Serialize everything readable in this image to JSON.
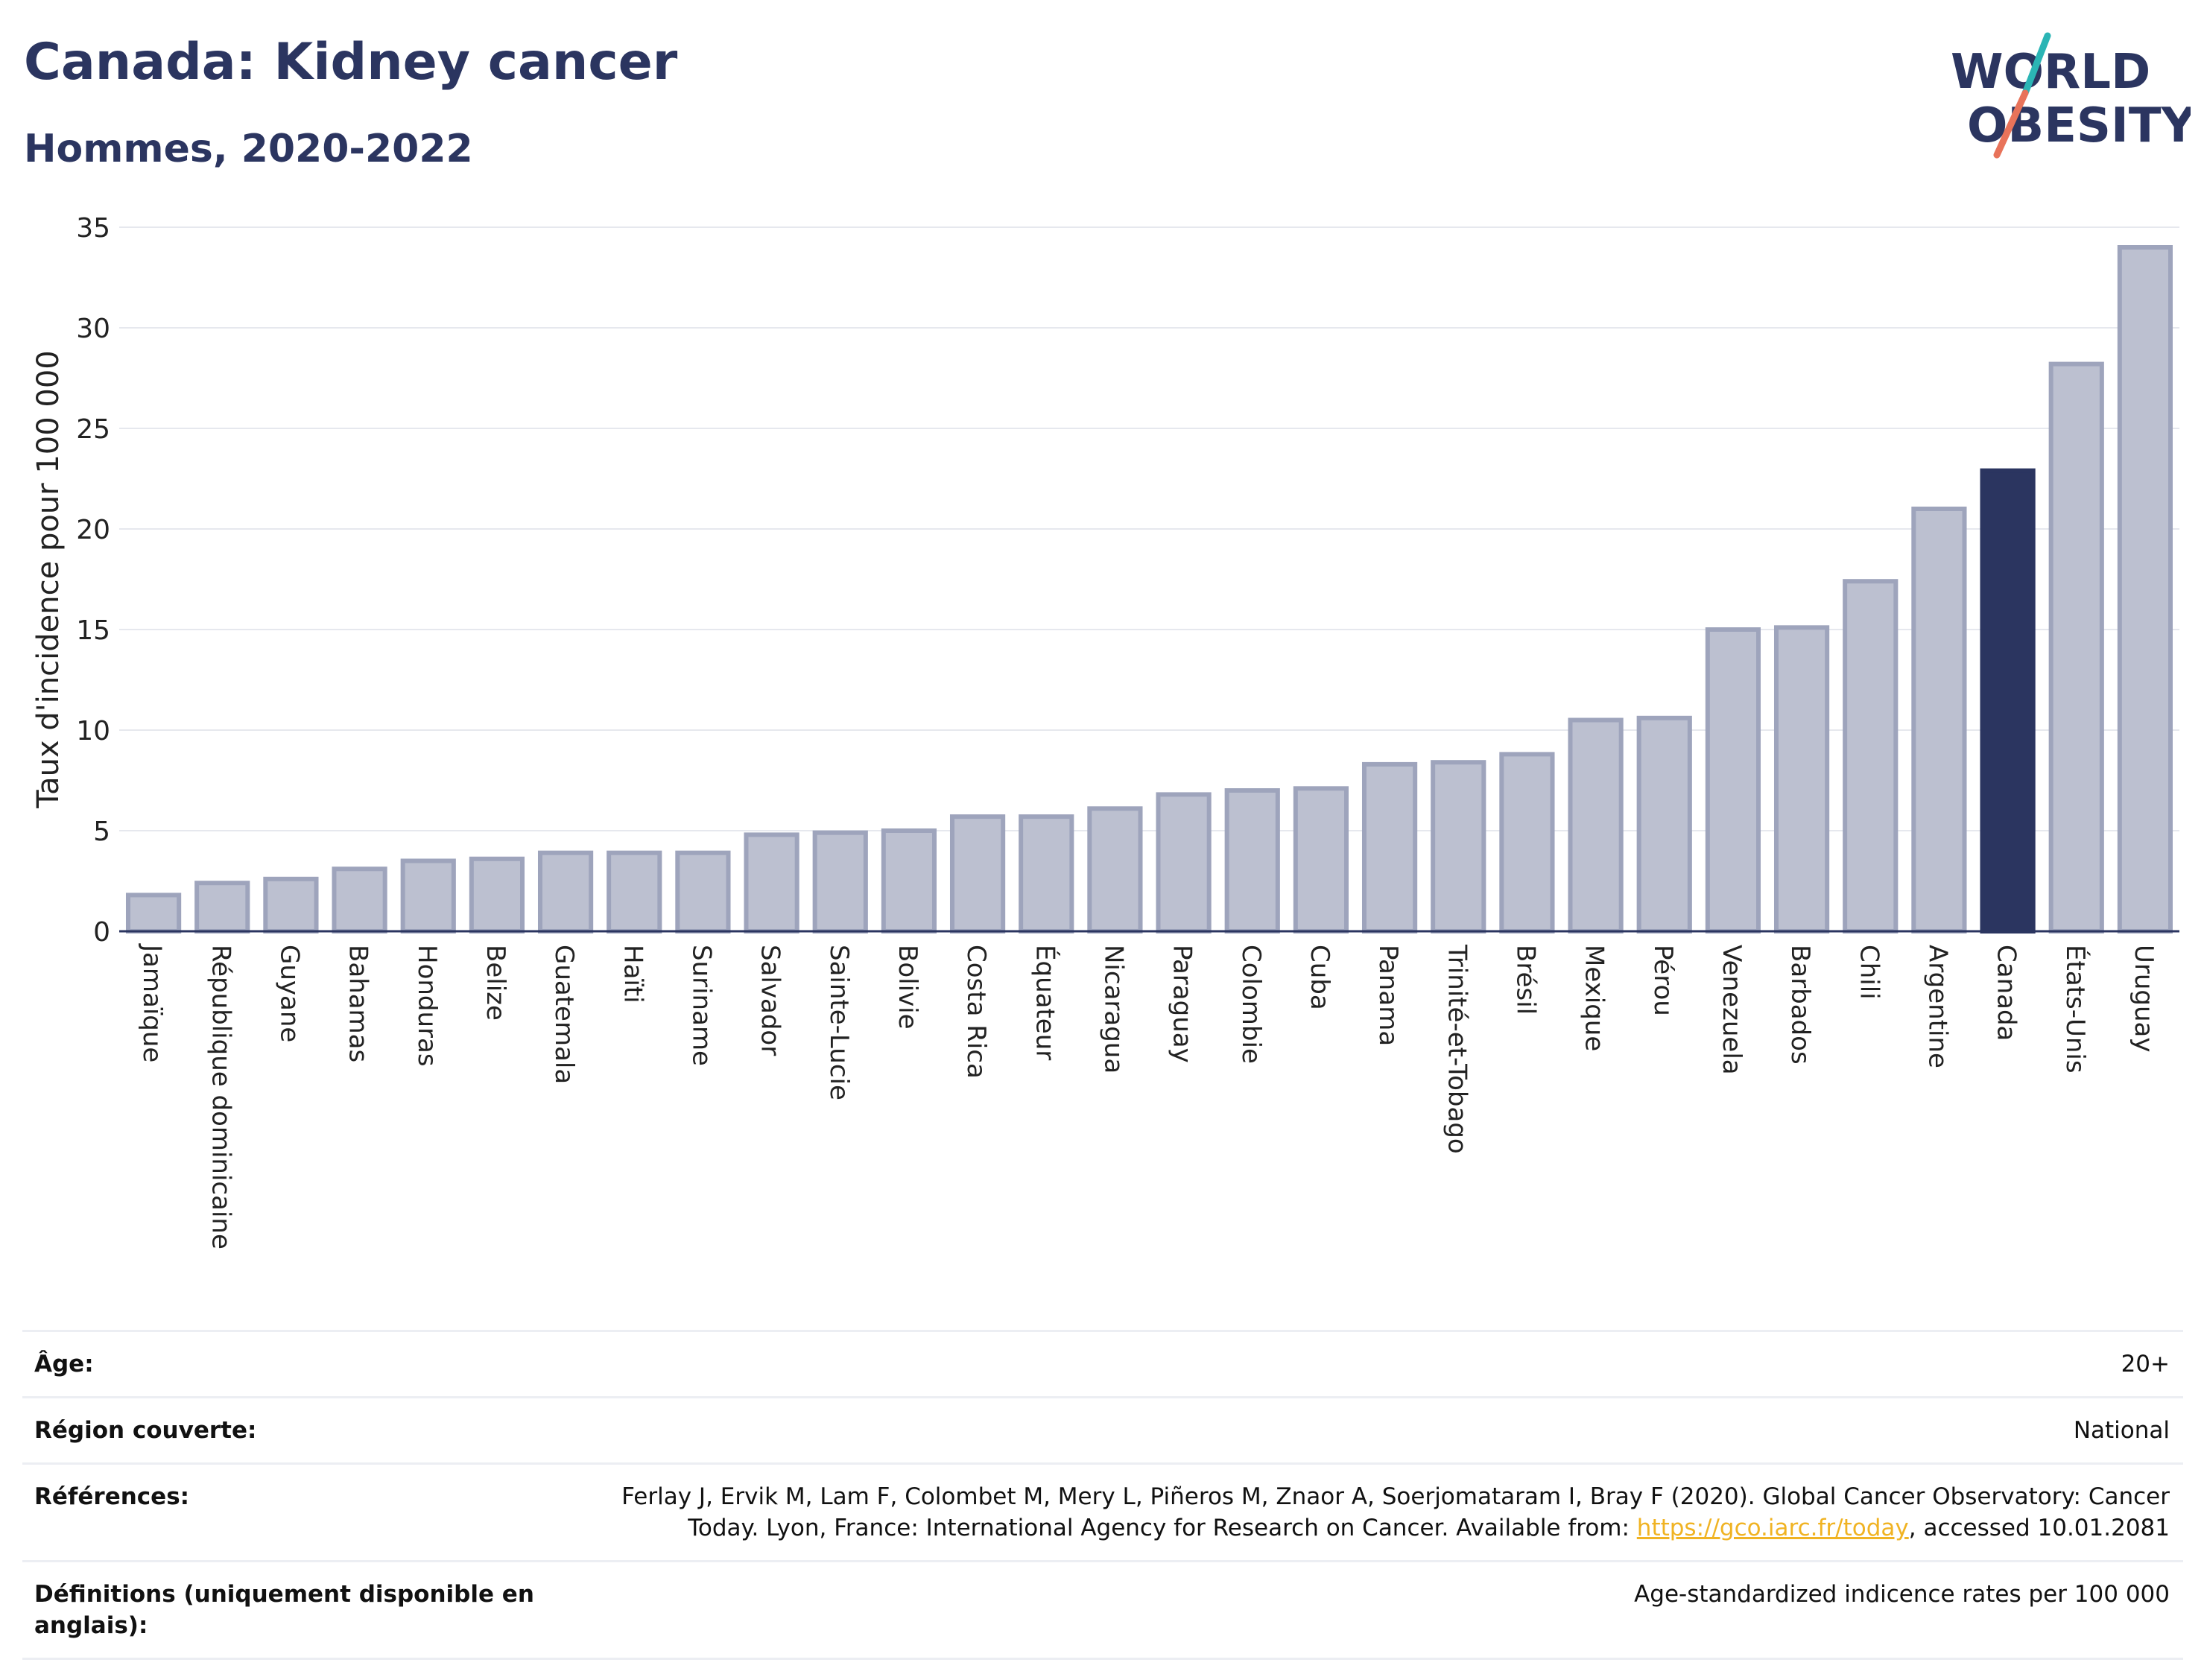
{
  "header": {
    "title": "Canada: Kidney cancer",
    "subtitle": "Hommes, 2020-2022"
  },
  "logo": {
    "line1": "WORLD",
    "line2": "OBESITY",
    "accent_colors": [
      "#2bb5b5",
      "#e8735a"
    ],
    "text_color": "#2b3560"
  },
  "chart_data": {
    "type": "bar",
    "title": "Canada: Kidney cancer",
    "subtitle": "Hommes, 2020-2022",
    "xlabel": "",
    "ylabel": "Taux d'incidence pour 100 000",
    "ylim": [
      0,
      35
    ],
    "yticks": [
      0,
      5,
      10,
      15,
      20,
      25,
      30,
      35
    ],
    "grid": true,
    "highlight": "Canada",
    "colors": {
      "bar": "#bcc0d0",
      "bar_border": "#9ea4bc",
      "highlight": "#2b3560",
      "grid": "#e6e8ee"
    },
    "categories": [
      "Jamaïque",
      "République dominicaine",
      "Guyane",
      "Bahamas",
      "Honduras",
      "Belize",
      "Guatemala",
      "Haïti",
      "Suriname",
      "Salvador",
      "Sainte-Lucie",
      "Bolivie",
      "Costa Rica",
      "Équateur",
      "Nicaragua",
      "Paraguay",
      "Colombie",
      "Cuba",
      "Panama",
      "Trinité-et-Tobago",
      "Brésil",
      "Mexique",
      "Pérou",
      "Venezuela",
      "Barbados",
      "Chili",
      "Argentine",
      "Canada",
      "États-Unis",
      "Uruguay"
    ],
    "values": [
      1.8,
      2.4,
      2.6,
      3.1,
      3.5,
      3.6,
      3.9,
      3.9,
      3.9,
      4.8,
      4.9,
      5.0,
      5.7,
      5.7,
      6.1,
      6.8,
      7.0,
      7.1,
      8.3,
      8.4,
      8.8,
      10.5,
      10.6,
      15.0,
      15.1,
      17.4,
      21.0,
      22.9,
      28.2,
      34.0
    ]
  },
  "meta": {
    "age": {
      "label": "Âge:",
      "value": "20+"
    },
    "region": {
      "label": "Région couverte:",
      "value": "National"
    },
    "references": {
      "label": "Références:",
      "text_before": "Ferlay J, Ervik M, Lam F, Colombet M, Mery L, Piñeros M, Znaor A, Soerjomataram I, Bray F (2020). Global Cancer Observatory: Cancer Today. Lyon, France: International Agency for Research on Cancer. Available from: ",
      "link": "https://gco.iarc.fr/today",
      "text_after": ", accessed 10.01.2081"
    },
    "definitions": {
      "label": "Définitions (uniquement disponible en anglais):",
      "value": "Age-standardized indicence rates per 100 000"
    }
  }
}
